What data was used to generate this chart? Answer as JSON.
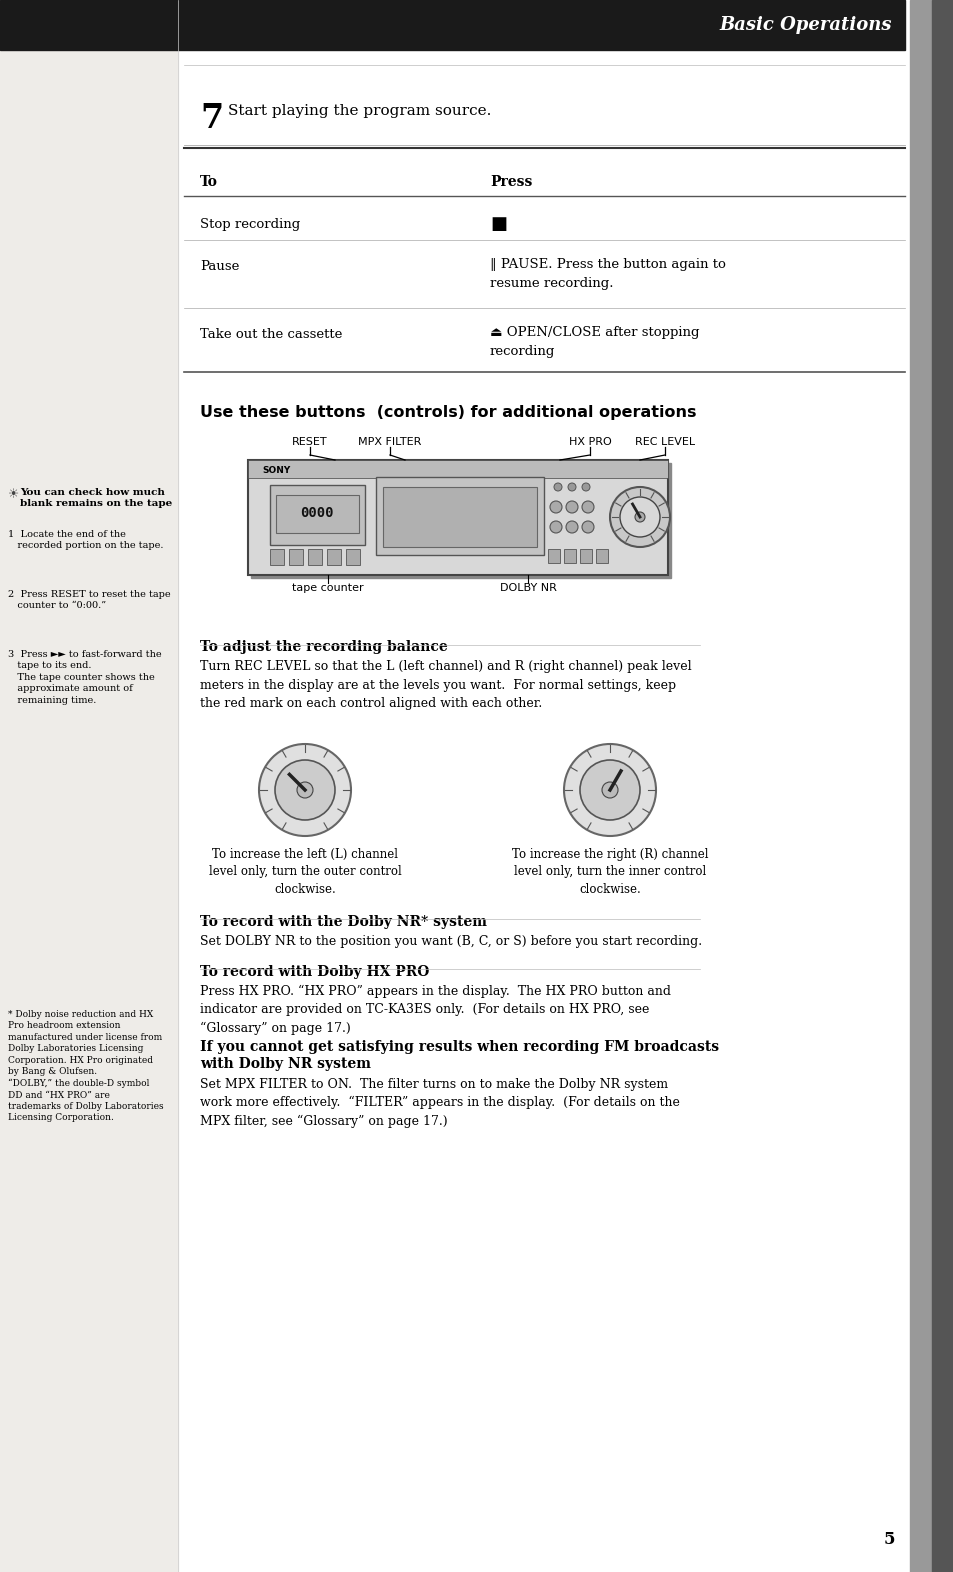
{
  "bg_color": "#f0eeea",
  "page_bg": "#ffffff",
  "header_bg": "#1a1a1a",
  "header_text": "Basic Operations",
  "header_text_color": "#ffffff",
  "right_bar_color": "#555555",
  "step7_number": "7",
  "step7_text": "Start playing the program source.",
  "table_header_to": "To",
  "table_header_press": "Press",
  "table_rows": [
    {
      "to": "Stop recording",
      "press": "■"
    },
    {
      "to": "Pause",
      "press": "‖ PAUSE. Press the button again to\nresume recording."
    },
    {
      "to": "Take out the cassette",
      "press": "⏏ OPEN/CLOSE after stopping\nrecording"
    }
  ],
  "section_title": "Use these buttons  (controls) for additional operations",
  "labels_row": [
    "RESET",
    "MPX FILTER",
    "HX PRO",
    "REC LEVEL"
  ],
  "tape_counter_label": "tape counter",
  "dolby_nr_label": "DOLBY NR",
  "adjust_heading": "To adjust the recording balance",
  "adjust_text": "Turn REC LEVEL so that the L (left channel) and R (right channel) peak level\nmeters in the display are at the levels you want.  For normal settings, keep\nthe red mark on each control aligned with each other.",
  "left_knob_label": "To increase the left (L) channel\nlevel only, turn the outer control\nclockwise.",
  "right_knob_label": "To increase the right (R) channel\nlevel only, turn the inner control\nclockwise.",
  "dolby_nr_heading": "To record with the Dolby NR* system",
  "dolby_nr_text": "Set DOLBY NR to the position you want (B, C, or S) before you start recording.",
  "hx_pro_heading": "To record with Dolby HX PRO",
  "hx_pro_text": "Press HX PRO. “HX PRO” appears in the display.  The HX PRO button and\nindicator are provided on TC-KA3ES only.  (For details on HX PRO, see\n“Glossary” on page 17.)",
  "fm_heading": "If you cannot get satisfying results when recording FM broadcasts\nwith Dolby NR system",
  "fm_text": "Set MPX FILTER to ON.  The filter turns on to make the Dolby NR system\nwork more effectively.  “FILTER” appears in the display.  (For details on the\nMPX filter, see “Glossary” on page 17.)",
  "sidebar_heading": "You can check how much\nblank remains on the tape",
  "sidebar_items": [
    "1  Locate the end of the\n   recorded portion on the tape.",
    "2  Press RESET to reset the tape\n   counter to “0:00.”",
    "3  Press ►► to fast-forward the\n   tape to its end.\n   The tape counter shows the\n   approximate amount of\n   remaining time."
  ],
  "footnote": "* Dolby noise reduction and HX\nPro headroom extension\nmanufactured under license from\nDolby Laboratories Licensing\nCorporation. HX Pro originated\nby Bang & Olufsen.\n“DOLBY,” the double-D symbol\nDD and “HX PRO” are\ntrademarks of Dolby Laboratories\nLicensing Corporation.",
  "page_number": "5"
}
